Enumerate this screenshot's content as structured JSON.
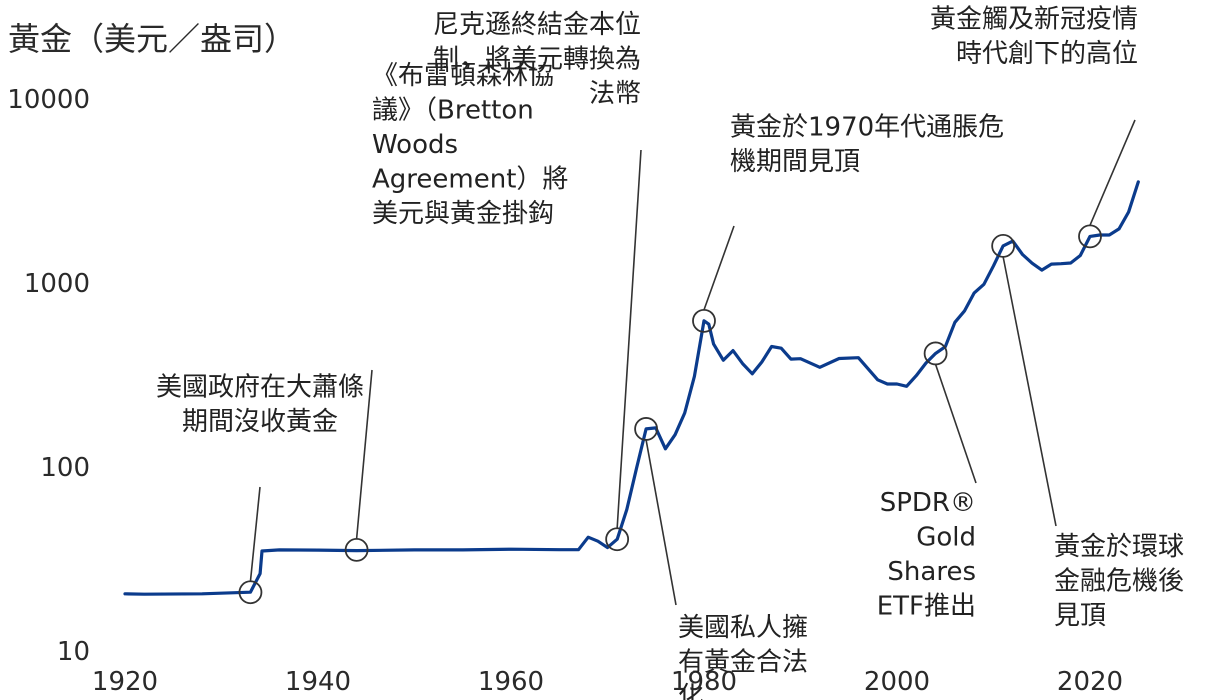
{
  "chart_data": {
    "type": "line",
    "title": "黃金（美元／盎司）",
    "xlabel": "",
    "ylabel": "",
    "y_scale": "log",
    "xlim": [
      1915,
      2025
    ],
    "ylim": [
      10,
      10000
    ],
    "x_ticks": [
      "1920",
      "1940",
      "1960",
      "1980",
      "2000",
      "2020"
    ],
    "y_ticks": [
      "10",
      "100",
      "1000",
      "10000"
    ],
    "grid": false,
    "legend": "none",
    "series_color": "#0b3b8c",
    "series": [
      {
        "x": [
          1915,
          1917,
          1918,
          1919,
          1920,
          1922,
          1928,
          1933,
          1934,
          1934.2,
          1936,
          1940,
          1944,
          1950,
          1955,
          1960,
          1965,
          1967,
          1968,
          1969,
          1970,
          1971,
          1972,
          1973,
          1974,
          1975,
          1976,
          1977,
          1978,
          1979,
          1980,
          1980.5,
          1981,
          1982,
          1983,
          1984,
          1985,
          1986,
          1987,
          1988,
          1989,
          1990,
          1992,
          1994,
          1996,
          1998,
          1999,
          2000,
          2001,
          2002,
          2003,
          2004,
          2005,
          2006,
          2007,
          2008,
          2009,
          2010,
          2011,
          2012,
          2013,
          2014,
          2015,
          2016,
          2017,
          2018,
          2019,
          2020,
          2021,
          2022,
          2023,
          2024,
          2025
        ],
        "values": [
          20.0,
          19.8,
          20.1,
          20.7,
          20.2,
          20.1,
          20.2,
          20.6,
          26.0,
          34.5,
          35.0,
          34.9,
          34.7,
          35.0,
          35.0,
          35.3,
          35.1,
          35.1,
          41.0,
          39.0,
          36.0,
          40.0,
          58.0,
          97.0,
          159.0,
          161.0,
          124.0,
          148.0,
          194.0,
          307.0,
          615.0,
          590.0,
          460.0,
          376.0,
          424.0,
          360.0,
          317.0,
          368.0,
          446.0,
          437.0,
          381.0,
          383.0,
          344.0,
          384.0,
          388.0,
          294.0,
          279.0,
          279.0,
          271.0,
          310.0,
          363.0,
          409.0,
          445.0,
          604.0,
          697.0,
          872.0,
          972.0,
          1225.0,
          1572.0,
          1669.0,
          1411.0,
          1266.0,
          1160.0,
          1251.0,
          1257.0,
          1268.0,
          1393.0,
          1770.0,
          1800.0,
          1800.0,
          1943.0,
          2400.0,
          3500.0
        ]
      }
    ],
    "annotations": [
      {
        "x": 1933,
        "y": 20.6,
        "label": [
          "美國政府在大蕭條",
          "期間沒收黃金"
        ]
      },
      {
        "x": 1944,
        "y": 35.0,
        "label": [
          "《布雷頓森林協",
          "議》（Bretton",
          "Woods",
          "Agreement）將",
          "美元與黃金掛鈎"
        ]
      },
      {
        "x": 1971,
        "y": 40.0,
        "label": [
          "尼克遜終結金本位",
          "制，將美元轉換為",
          "法幣"
        ]
      },
      {
        "x": 1974,
        "y": 159.0,
        "label": [
          "美國私人擁",
          "有黃金合法",
          "化"
        ]
      },
      {
        "x": 1980,
        "y": 615.0,
        "label": [
          "黃金於1970年代通脹危",
          "機期間見頂"
        ]
      },
      {
        "x": 2004,
        "y": 409.0,
        "label": [
          "SPDR®",
          "Gold",
          "Shares",
          "ETF推出"
        ]
      },
      {
        "x": 2011,
        "y": 1572.0,
        "label": [
          "黃金於環球",
          "金融危機後",
          "見頂"
        ]
      },
      {
        "x": 2020,
        "y": 1770.0,
        "label": [
          "黃金觸及新冠疫情",
          "時代創下的高位"
        ]
      }
    ]
  }
}
